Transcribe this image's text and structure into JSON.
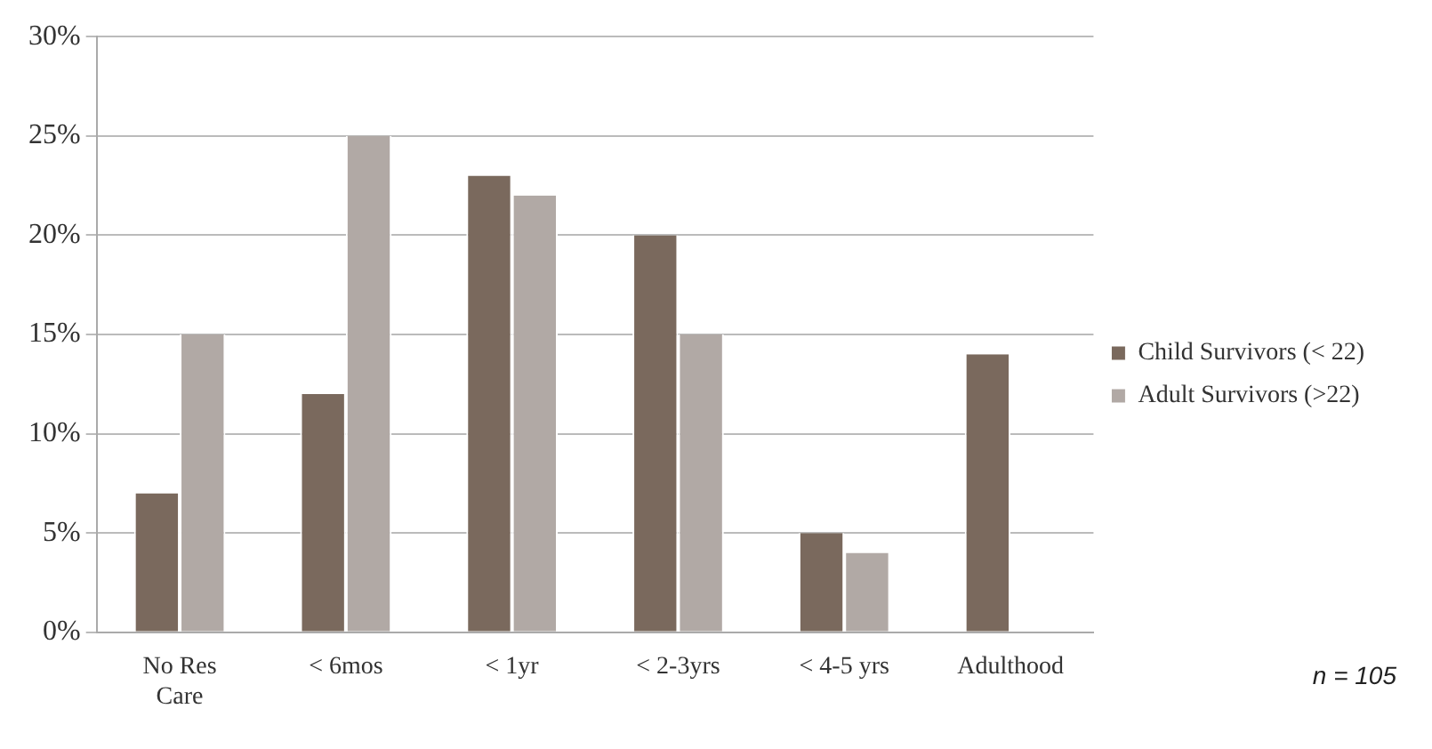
{
  "chart_data": {
    "type": "bar",
    "categories": [
      "No Res Care",
      "< 6mos",
      "< 1yr",
      "< 2-3yrs",
      "< 4-5 yrs",
      "Adulthood"
    ],
    "series": [
      {
        "name": "Child Survivors (< 22)",
        "color": "#7a695d",
        "values": [
          7,
          12,
          23,
          20,
          5,
          14
        ]
      },
      {
        "name": "Adult Survivors (>22)",
        "color": "#b1a9a5",
        "values": [
          15,
          25,
          22,
          15,
          4,
          null
        ]
      }
    ],
    "ylim": [
      0,
      30
    ],
    "yticks": [
      {
        "value": 0,
        "label": "0%"
      },
      {
        "value": 5,
        "label": "5%"
      },
      {
        "value": 10,
        "label": "10%"
      },
      {
        "value": 15,
        "label": "15%"
      },
      {
        "value": 20,
        "label": "20%"
      },
      {
        "value": 25,
        "label": "25%"
      },
      {
        "value": 30,
        "label": "30%"
      }
    ],
    "grid": "y",
    "legend": "right",
    "annotations": [
      "n = 105"
    ]
  }
}
